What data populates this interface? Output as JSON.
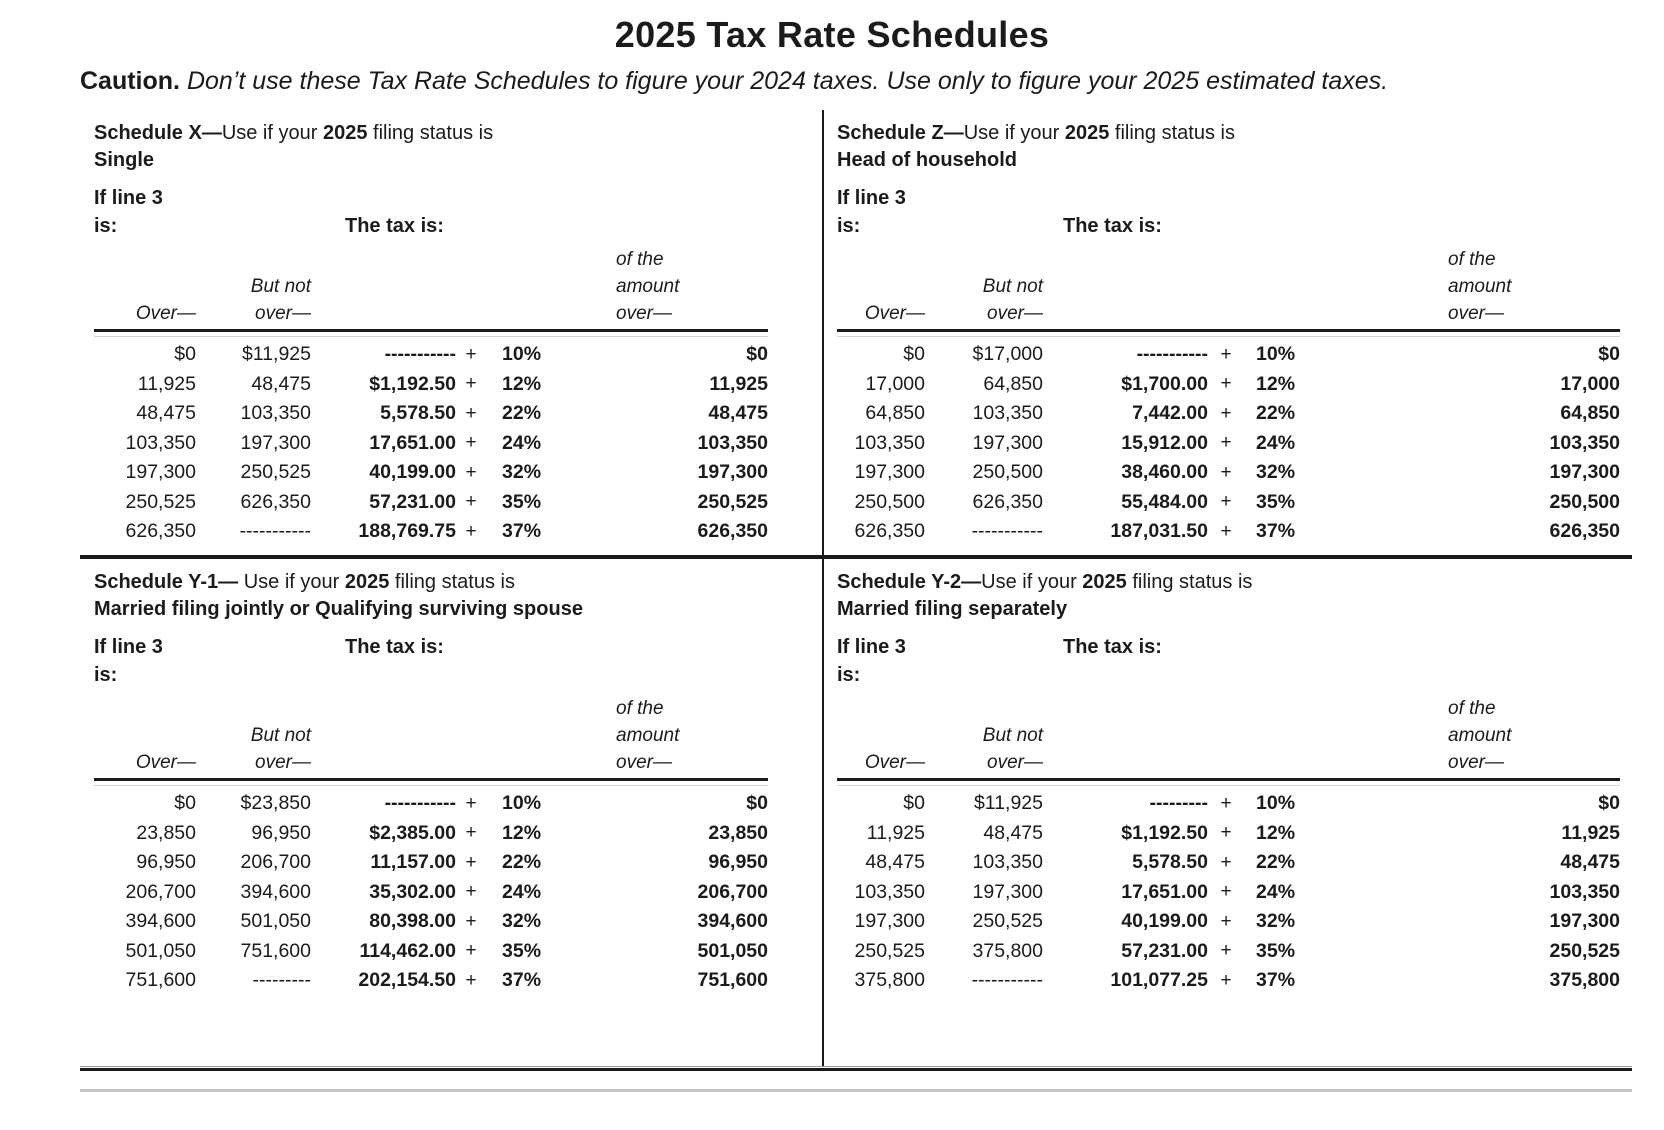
{
  "page": {
    "title": "2025 Tax Rate Schedules",
    "caution_label": "Caution.",
    "caution_text": "Don’t use these Tax Rate Schedules to figure your 2024 taxes. Use only to figure your 2025 estimated taxes."
  },
  "labels": {
    "if_line3_line1": "If line 3",
    "if_line3_line2": "is:",
    "tax_is": "The tax is:",
    "over": "Over—",
    "but_not_line1": "But not",
    "but_not_line2": "over—",
    "amount_line1": "of the",
    "amount_line2": "amount",
    "amount_line3": "over—",
    "plus": "+"
  },
  "schedules": [
    {
      "bold1": "Schedule X—",
      "reg1": "Use if your ",
      "year": "2025",
      "reg2": " filing status is",
      "status": "Single",
      "rows": [
        {
          "over": "$0",
          "butNot": "$11,925",
          "tax": "-----------",
          "rate": "10%",
          "amount": "$0"
        },
        {
          "over": "11,925",
          "butNot": "48,475",
          "tax": "$1,192.50",
          "rate": "12%",
          "amount": "11,925"
        },
        {
          "over": "48,475",
          "butNot": "103,350",
          "tax": "5,578.50",
          "rate": "22%",
          "amount": "48,475"
        },
        {
          "over": "103,350",
          "butNot": "197,300",
          "tax": "17,651.00",
          "rate": "24%",
          "amount": "103,350"
        },
        {
          "over": "197,300",
          "butNot": "250,525",
          "tax": "40,199.00",
          "rate": "32%",
          "amount": "197,300"
        },
        {
          "over": "250,525",
          "butNot": "626,350",
          "tax": "57,231.00",
          "rate": "35%",
          "amount": "250,525"
        },
        {
          "over": "626,350",
          "butNot": "-----------",
          "tax": "188,769.75",
          "rate": "37%",
          "amount": "626,350"
        }
      ]
    },
    {
      "bold1": "Schedule Z—",
      "reg1": "Use if your ",
      "year": "2025",
      "reg2": " filing status is",
      "status": "Head of household",
      "rows": [
        {
          "over": "$0",
          "butNot": "$17,000",
          "tax": "-----------",
          "rate": "10%",
          "amount": "$0"
        },
        {
          "over": "17,000",
          "butNot": "64,850",
          "tax": "$1,700.00",
          "rate": "12%",
          "amount": "17,000"
        },
        {
          "over": "64,850",
          "butNot": "103,350",
          "tax": "7,442.00",
          "rate": "22%",
          "amount": "64,850"
        },
        {
          "over": "103,350",
          "butNot": "197,300",
          "tax": "15,912.00",
          "rate": "24%",
          "amount": "103,350"
        },
        {
          "over": "197,300",
          "butNot": "250,500",
          "tax": "38,460.00",
          "rate": "32%",
          "amount": "197,300"
        },
        {
          "over": "250,500",
          "butNot": "626,350",
          "tax": "55,484.00",
          "rate": "35%",
          "amount": "250,500"
        },
        {
          "over": "626,350",
          "butNot": "-----------",
          "tax": "187,031.50",
          "rate": "37%",
          "amount": "626,350"
        }
      ]
    },
    {
      "bold1": "Schedule Y-1—",
      "reg1": " Use if your ",
      "year": "2025",
      "reg2": " filing status is",
      "status": "Married filing jointly or Qualifying surviving spouse",
      "rows": [
        {
          "over": "$0",
          "butNot": "$23,850",
          "tax": "-----------",
          "rate": "10%",
          "amount": "$0"
        },
        {
          "over": "23,850",
          "butNot": "96,950",
          "tax": "$2,385.00",
          "rate": "12%",
          "amount": "23,850"
        },
        {
          "over": "96,950",
          "butNot": "206,700",
          "tax": "11,157.00",
          "rate": "22%",
          "amount": "96,950"
        },
        {
          "over": "206,700",
          "butNot": "394,600",
          "tax": "35,302.00",
          "rate": "24%",
          "amount": "206,700"
        },
        {
          "over": "394,600",
          "butNot": "501,050",
          "tax": "80,398.00",
          "rate": "32%",
          "amount": "394,600"
        },
        {
          "over": "501,050",
          "butNot": "751,600",
          "tax": "114,462.00",
          "rate": "35%",
          "amount": "501,050"
        },
        {
          "over": "751,600",
          "butNot": "---------",
          "tax": "202,154.50",
          "rate": "37%",
          "amount": "751,600"
        }
      ]
    },
    {
      "bold1": "Schedule Y-2—",
      "reg1": "Use if your ",
      "year": "2025",
      "reg2": " filing status is",
      "status": "Married filing separately",
      "rows": [
        {
          "over": "$0",
          "butNot": "$11,925",
          "tax": "---------",
          "rate": "10%",
          "amount": "$0"
        },
        {
          "over": "11,925",
          "butNot": "48,475",
          "tax": "$1,192.50",
          "rate": "12%",
          "amount": "11,925"
        },
        {
          "over": "48,475",
          "butNot": "103,350",
          "tax": "5,578.50",
          "rate": "22%",
          "amount": "48,475"
        },
        {
          "over": "103,350",
          "butNot": "197,300",
          "tax": "17,651.00",
          "rate": "24%",
          "amount": "103,350"
        },
        {
          "over": "197,300",
          "butNot": "250,525",
          "tax": "40,199.00",
          "rate": "32%",
          "amount": "197,300"
        },
        {
          "over": "250,525",
          "butNot": "375,800",
          "tax": "57,231.00",
          "rate": "35%",
          "amount": "250,525"
        },
        {
          "over": "375,800",
          "butNot": "-----------",
          "tax": "101,077.25",
          "rate": "37%",
          "amount": "375,800"
        }
      ]
    }
  ]
}
